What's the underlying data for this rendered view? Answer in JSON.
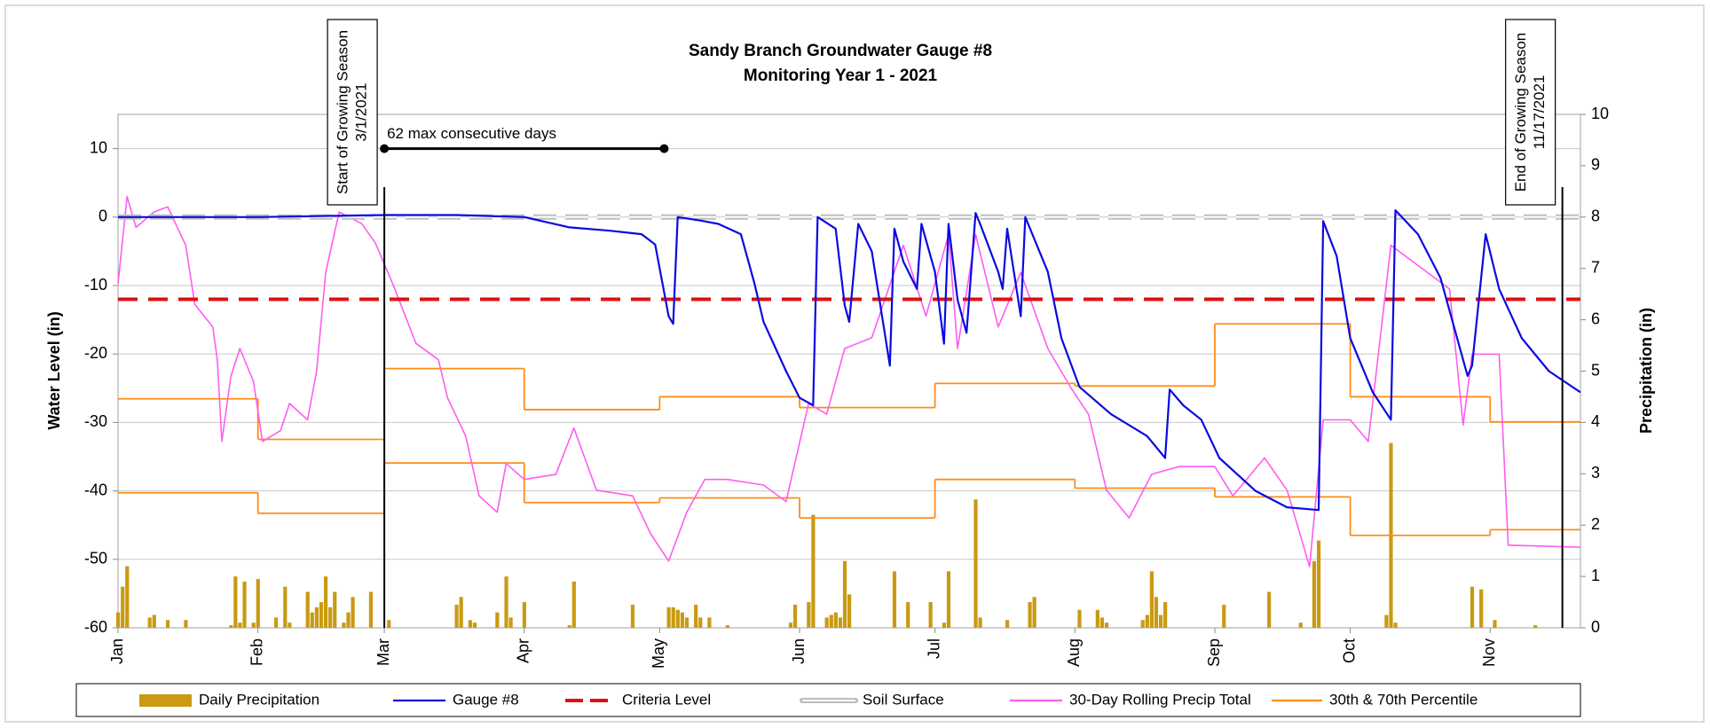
{
  "chart_data": {
    "type": "combo",
    "title": "Sandy Branch Groundwater Gauge #8",
    "subtitle": "Monitoring Year 1 - 2021",
    "y_label": "Water Level (in)",
    "y2_label": "Precipitation (in)",
    "xlim": [
      "2021-01-01",
      "2021-11-21"
    ],
    "xticks": [
      {
        "value": "2021-01-01",
        "label": "Jan"
      },
      {
        "value": "2021-02-01",
        "label": "Feb"
      },
      {
        "value": "2021-03-01",
        "label": "Mar"
      },
      {
        "value": "2021-04-01",
        "label": "Apr"
      },
      {
        "value": "2021-05-01",
        "label": "May"
      },
      {
        "value": "2021-06-01",
        "label": "Jun"
      },
      {
        "value": "2021-07-01",
        "label": "Jul"
      },
      {
        "value": "2021-08-01",
        "label": "Aug"
      },
      {
        "value": "2021-09-01",
        "label": "Sep"
      },
      {
        "value": "2021-10-01",
        "label": "Oct"
      },
      {
        "value": "2021-11-01",
        "label": "Nov"
      }
    ],
    "ylim": [
      -60,
      15
    ],
    "yticks": [
      -60,
      -50,
      -40,
      -30,
      -20,
      -10,
      0,
      10
    ],
    "y2lim": [
      0,
      10
    ],
    "y2ticks": [
      0,
      1,
      2,
      3,
      4,
      5,
      6,
      7,
      8,
      9,
      10
    ],
    "grid": true,
    "legend": "bottom",
    "series": [
      {
        "name": "Daily Precipitation",
        "type": "bar",
        "axis": "y2",
        "color": "#c99a12",
        "x": [
          "2021-01-01",
          "2021-01-02",
          "2021-01-03",
          "2021-01-08",
          "2021-01-09",
          "2021-01-12",
          "2021-01-16",
          "2021-01-26",
          "2021-01-27",
          "2021-01-28",
          "2021-01-29",
          "2021-01-31",
          "2021-02-01",
          "2021-02-05",
          "2021-02-07",
          "2021-02-08",
          "2021-02-12",
          "2021-02-13",
          "2021-02-14",
          "2021-02-15",
          "2021-02-16",
          "2021-02-17",
          "2021-02-18",
          "2021-02-20",
          "2021-02-21",
          "2021-02-22",
          "2021-02-26",
          "2021-03-02",
          "2021-03-17",
          "2021-03-18",
          "2021-03-20",
          "2021-03-21",
          "2021-03-26",
          "2021-03-28",
          "2021-03-29",
          "2021-04-01",
          "2021-04-11",
          "2021-04-12",
          "2021-04-25",
          "2021-05-03",
          "2021-05-04",
          "2021-05-05",
          "2021-05-06",
          "2021-05-07",
          "2021-05-09",
          "2021-05-10",
          "2021-05-12",
          "2021-05-16",
          "2021-05-30",
          "2021-05-31",
          "2021-06-03",
          "2021-06-04",
          "2021-06-07",
          "2021-06-08",
          "2021-06-09",
          "2021-06-10",
          "2021-06-11",
          "2021-06-12",
          "2021-06-22",
          "2021-06-25",
          "2021-06-30",
          "2021-07-03",
          "2021-07-04",
          "2021-07-10",
          "2021-07-11",
          "2021-07-17",
          "2021-07-22",
          "2021-07-23",
          "2021-08-02",
          "2021-08-06",
          "2021-08-07",
          "2021-08-08",
          "2021-08-16",
          "2021-08-17",
          "2021-08-18",
          "2021-08-19",
          "2021-08-20",
          "2021-08-21",
          "2021-09-03",
          "2021-09-13",
          "2021-09-20",
          "2021-09-23",
          "2021-09-24",
          "2021-10-09",
          "2021-10-10",
          "2021-10-11",
          "2021-10-28",
          "2021-10-30",
          "2021-11-02",
          "2021-11-11"
        ],
        "values": [
          0.3,
          0.8,
          1.2,
          0.2,
          0.25,
          0.15,
          0.15,
          0.05,
          1.0,
          0.1,
          0.9,
          0.1,
          0.95,
          0.2,
          0.8,
          0.1,
          0.7,
          0.3,
          0.4,
          0.5,
          1.0,
          0.4,
          0.7,
          0.1,
          0.3,
          0.6,
          0.7,
          0.15,
          0.45,
          0.6,
          0.15,
          0.1,
          0.3,
          1.0,
          0.2,
          0.5,
          0.05,
          0.9,
          0.45,
          0.4,
          0.4,
          0.35,
          0.3,
          0.2,
          0.45,
          0.2,
          0.2,
          0.05,
          0.1,
          0.45,
          0.5,
          2.2,
          0.2,
          0.25,
          0.3,
          0.2,
          1.3,
          0.65,
          1.1,
          0.5,
          0.5,
          0.1,
          1.1,
          2.5,
          0.2,
          0.15,
          0.5,
          0.6,
          0.35,
          0.35,
          0.2,
          0.1,
          0.15,
          0.25,
          1.1,
          0.6,
          0.25,
          0.5,
          0.45,
          0.7,
          0.1,
          1.3,
          1.7,
          0.25,
          3.6,
          0.1,
          0.8,
          0.75,
          0.15,
          0.05
        ]
      },
      {
        "name": "Gauge #8",
        "type": "line",
        "axis": "y",
        "color": "#0a0ae0",
        "x": [
          "2021-01-01",
          "2021-02-01",
          "2021-03-01",
          "2021-03-17",
          "2021-04-01",
          "2021-04-11",
          "2021-04-20",
          "2021-04-27",
          "2021-04-30",
          "2021-05-03",
          "2021-05-04",
          "2021-05-05",
          "2021-05-10",
          "2021-05-14",
          "2021-05-19",
          "2021-05-22",
          "2021-05-24",
          "2021-05-29",
          "2021-06-01",
          "2021-06-04",
          "2021-06-05",
          "2021-06-09",
          "2021-06-11",
          "2021-06-12",
          "2021-06-14",
          "2021-06-17",
          "2021-06-21",
          "2021-06-22",
          "2021-06-24",
          "2021-06-27",
          "2021-06-28",
          "2021-07-01",
          "2021-07-03",
          "2021-07-04",
          "2021-07-06",
          "2021-07-08",
          "2021-07-10",
          "2021-07-11",
          "2021-07-15",
          "2021-07-16",
          "2021-07-17",
          "2021-07-20",
          "2021-07-21",
          "2021-07-26",
          "2021-07-29",
          "2021-08-02",
          "2021-08-09",
          "2021-08-17",
          "2021-08-21",
          "2021-08-22",
          "2021-08-25",
          "2021-08-29",
          "2021-09-02",
          "2021-09-10",
          "2021-09-17",
          "2021-09-24",
          "2021-09-25",
          "2021-09-28",
          "2021-10-01",
          "2021-10-06",
          "2021-10-10",
          "2021-10-11",
          "2021-10-16",
          "2021-10-21",
          "2021-10-27",
          "2021-10-28",
          "2021-10-31",
          "2021-11-03",
          "2021-11-08",
          "2021-11-14",
          "2021-11-21"
        ],
        "values": [
          0,
          0,
          0.3,
          0.3,
          0,
          -1.5,
          -2,
          -2.5,
          -4,
          -14.5,
          -15.6,
          0,
          -0.5,
          -1,
          -2.5,
          -9.7,
          -15.3,
          -22.5,
          -26.4,
          -27.5,
          0,
          -1.7,
          -12.9,
          -15.3,
          -1,
          -5,
          -21.7,
          -1.7,
          -6.5,
          -10.5,
          -1,
          -8,
          -18.5,
          -1,
          -12.1,
          -16.9,
          0.6,
          -1,
          -8,
          -10.5,
          -1.7,
          -14.5,
          0,
          -8,
          -17.7,
          -24.8,
          -28.8,
          -32,
          -35.2,
          -25.2,
          -27.5,
          -29.6,
          -35.2,
          -40,
          -42.4,
          -42.8,
          -0.6,
          -5.7,
          -17.7,
          -25.6,
          -29.6,
          1,
          -2.5,
          -8.9,
          -23.2,
          -21.7,
          -2.5,
          -10.5,
          -17.7,
          -22.5,
          -25.6
        ]
      },
      {
        "name": "Criteria Level",
        "type": "hline",
        "axis": "y",
        "color": "#e01010",
        "style": "dashed",
        "value": -12
      },
      {
        "name": "Soil Surface",
        "type": "hline",
        "axis": "y",
        "color": "#bdbdbd",
        "style": "double-dashed",
        "value": 0
      },
      {
        "name": "30-Day Rolling Precip Total",
        "type": "line",
        "axis": "y2",
        "color": "#ff5cf0",
        "x": [
          "2021-01-01",
          "2021-01-03",
          "2021-01-05",
          "2021-01-09",
          "2021-01-12",
          "2021-01-16",
          "2021-01-18",
          "2021-01-22",
          "2021-01-23",
          "2021-01-24",
          "2021-01-26",
          "2021-01-28",
          "2021-01-31",
          "2021-02-02",
          "2021-02-06",
          "2021-02-08",
          "2021-02-12",
          "2021-02-14",
          "2021-02-16",
          "2021-02-19",
          "2021-02-24",
          "2021-02-27",
          "2021-03-03",
          "2021-03-08",
          "2021-03-13",
          "2021-03-15",
          "2021-03-19",
          "2021-03-22",
          "2021-03-26",
          "2021-03-28",
          "2021-04-01",
          "2021-04-08",
          "2021-04-12",
          "2021-04-17",
          "2021-04-25",
          "2021-04-29",
          "2021-05-03",
          "2021-05-07",
          "2021-05-11",
          "2021-05-16",
          "2021-05-24",
          "2021-05-29",
          "2021-06-03",
          "2021-06-07",
          "2021-06-11",
          "2021-06-17",
          "2021-06-24",
          "2021-06-29",
          "2021-07-04",
          "2021-07-06",
          "2021-07-10",
          "2021-07-15",
          "2021-07-20",
          "2021-07-26",
          "2021-07-31",
          "2021-08-04",
          "2021-08-08",
          "2021-08-13",
          "2021-08-18",
          "2021-08-24",
          "2021-09-01",
          "2021-09-05",
          "2021-09-12",
          "2021-09-17",
          "2021-09-22",
          "2021-09-25",
          "2021-10-01",
          "2021-10-05",
          "2021-10-10",
          "2021-10-23",
          "2021-10-26",
          "2021-10-28",
          "2021-11-03",
          "2021-11-05",
          "2021-11-21"
        ],
        "values": [
          6.7,
          8.4,
          7.8,
          8.1,
          8.2,
          7.45,
          6.3,
          5.86,
          5.22,
          3.63,
          4.9,
          5.44,
          4.8,
          3.63,
          3.84,
          4.37,
          4.05,
          5.0,
          6.92,
          8.1,
          7.87,
          7.5,
          6.67,
          5.54,
          5.22,
          4.48,
          3.74,
          2.57,
          2.25,
          3.2,
          2.89,
          2.99,
          3.89,
          2.68,
          2.57,
          1.83,
          1.3,
          2.25,
          2.89,
          2.89,
          2.78,
          2.46,
          4.37,
          4.16,
          5.44,
          5.65,
          7.45,
          6.07,
          7.66,
          5.44,
          7.66,
          5.86,
          6.92,
          5.44,
          4.69,
          4.16,
          2.68,
          2.14,
          2.99,
          3.14,
          3.14,
          2.57,
          3.31,
          2.68,
          1.19,
          4.05,
          4.05,
          3.63,
          7.45,
          6.6,
          3.95,
          5.33,
          5.33,
          1.61,
          1.57
        ]
      },
      {
        "name": "30th & 70th Percentile",
        "type": "step",
        "axis": "y2",
        "color": "#ff8c1a",
        "x": [
          "2021-01-01",
          "2021-02-01",
          "2021-03-01",
          "2021-04-01",
          "2021-05-01",
          "2021-06-01",
          "2021-07-01",
          "2021-08-01",
          "2021-09-01",
          "2021-10-01",
          "2021-11-01"
        ],
        "upper": [
          4.46,
          3.67,
          5.05,
          4.25,
          4.5,
          4.29,
          4.76,
          4.71,
          5.92,
          4.5,
          4.01
        ],
        "lower": [
          2.63,
          2.23,
          3.21,
          2.44,
          2.53,
          2.14,
          2.89,
          2.72,
          2.55,
          1.8,
          1.91
        ]
      }
    ],
    "annotations": [
      {
        "text": "Start of Growing Season",
        "date_label": "3/1/2021",
        "x": "2021-03-01"
      },
      {
        "text": "End of Growing Season",
        "date_label": "11/17/2021",
        "x": "2021-11-17"
      },
      {
        "text": "62 max consecutive days",
        "x": [
          "2021-03-01",
          "2021-05-02"
        ],
        "y": 10
      }
    ]
  }
}
